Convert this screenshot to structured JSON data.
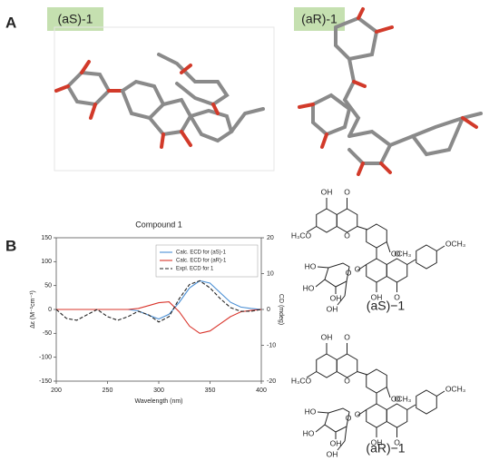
{
  "panels": {
    "a": "A",
    "b": "B"
  },
  "conformers": [
    "(aS)-1",
    "(aR)-1"
  ],
  "chart_data": {
    "type": "line",
    "title": "Compound 1",
    "x_label": "Wavelength (nm)",
    "y_label": "Δε (M⁻¹cm⁻¹)",
    "y2_label": "CD (mdeg)",
    "x": [
      200,
      210,
      220,
      230,
      240,
      250,
      260,
      270,
      280,
      290,
      300,
      310,
      320,
      330,
      340,
      350,
      360,
      370,
      380,
      390,
      400
    ],
    "xlim": [
      200,
      400
    ],
    "xticks": [
      200,
      250,
      300,
      350,
      400
    ],
    "ylim": [
      -150,
      150
    ],
    "yticks": [
      -150,
      -100,
      -50,
      0,
      50,
      100,
      150
    ],
    "y2lim": [
      -20,
      20
    ],
    "y2ticks": [
      -20,
      -10,
      0,
      10,
      20
    ],
    "legend": "upper right",
    "series": [
      {
        "name": "Calc. ECD for (aS)-1",
        "color": "#4a8fd4",
        "style": "solid",
        "values": [
          0,
          0,
          0,
          0,
          0,
          0,
          0,
          0,
          -3,
          -12,
          -20,
          -10,
          15,
          45,
          60,
          55,
          35,
          15,
          5,
          2,
          0
        ]
      },
      {
        "name": "Calc. ECD for (aR)-1",
        "color": "#d9342b",
        "style": "solid",
        "values": [
          0,
          0,
          0,
          0,
          0,
          0,
          0,
          0,
          2,
          8,
          14,
          16,
          -5,
          -35,
          -50,
          -45,
          -30,
          -15,
          -5,
          -2,
          0
        ]
      },
      {
        "name": "Expl. ECD for 1",
        "color": "#222222",
        "style": "dashed",
        "axis": "y2",
        "values": [
          0,
          -2.5,
          -3,
          -1.5,
          0,
          -2,
          -3,
          -2,
          -0.5,
          -1.5,
          -3.5,
          -2,
          3,
          7,
          8,
          6,
          3,
          0.5,
          -0.5,
          -0.5,
          0
        ]
      }
    ]
  },
  "structures": [
    {
      "label": "(aS)−1",
      "atoms": [
        "OH",
        "O",
        "H₃CO",
        "O",
        "OCH₃",
        "HO",
        "HO",
        "O",
        "O",
        "OH",
        "OH",
        "O",
        "OH",
        "O",
        "OCH₃"
      ]
    },
    {
      "label": "(aR)−1",
      "atoms": [
        "OH",
        "O",
        "H₃CO",
        "O",
        "OCH₃",
        "HO",
        "HO",
        "O",
        "O",
        "OH",
        "OH",
        "O",
        "OH",
        "O",
        "OCH₃"
      ]
    }
  ]
}
